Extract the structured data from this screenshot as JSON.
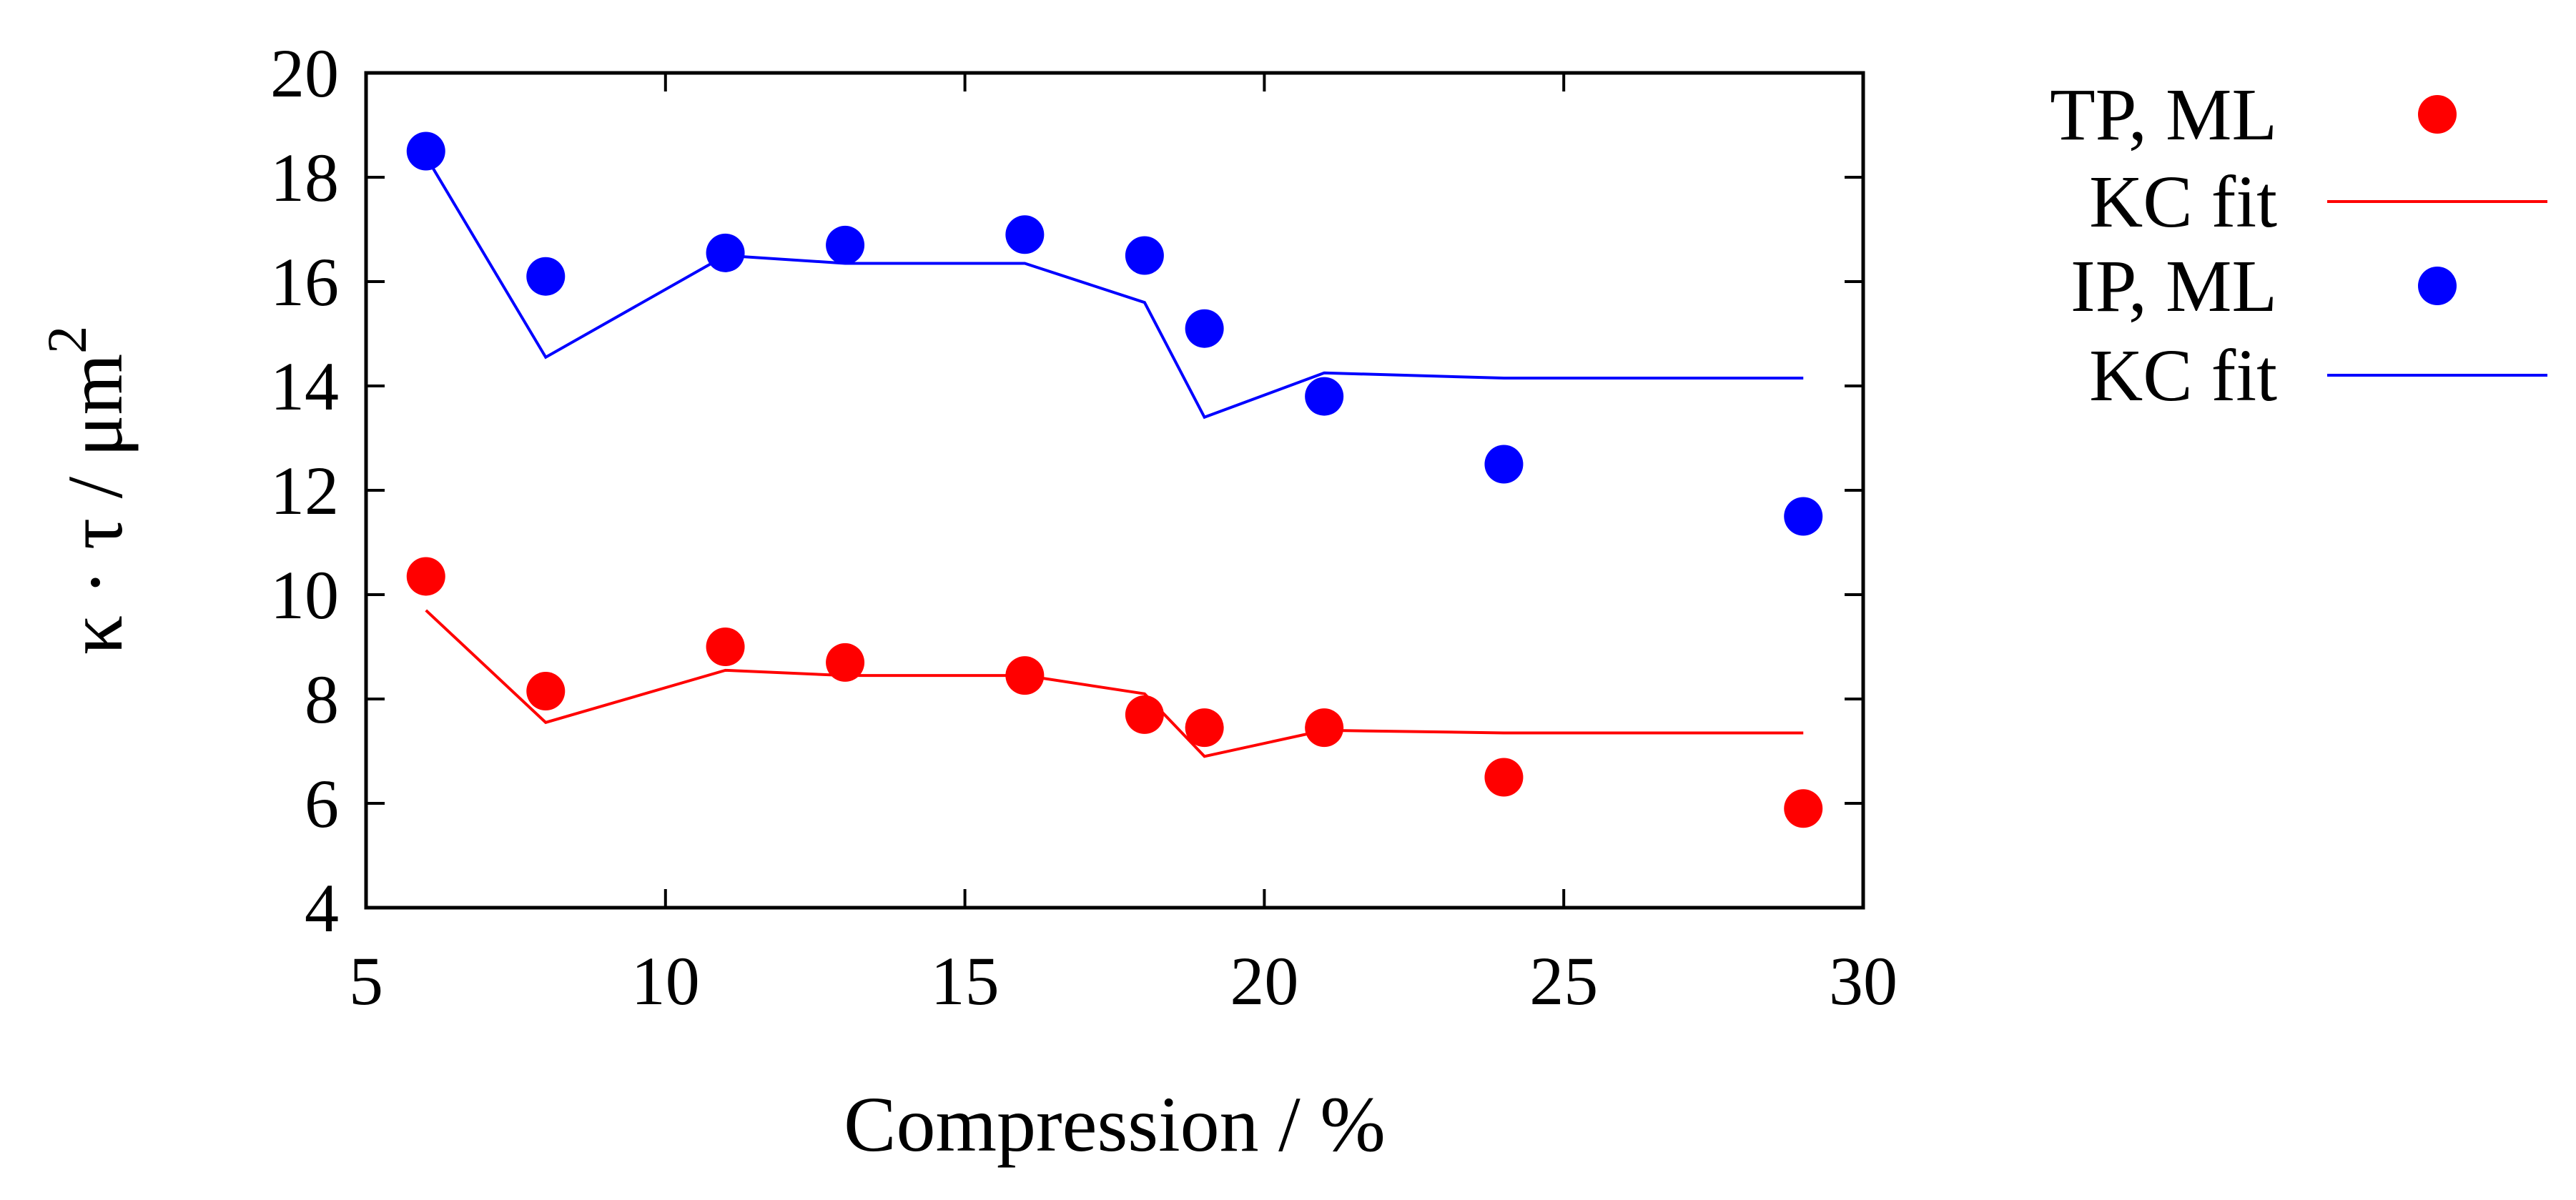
{
  "chart_data": {
    "type": "scatter",
    "title": "",
    "xlabel": "Compression  / %",
    "ylabel": {
      "main": "κ · τ / μm",
      "superscript": "2"
    },
    "xlim": [
      5,
      30
    ],
    "ylim": [
      4,
      20
    ],
    "xticks": [
      5,
      10,
      15,
      20,
      25,
      30
    ],
    "yticks": [
      4,
      6,
      8,
      10,
      12,
      14,
      16,
      18,
      20
    ],
    "grid": false,
    "legend_position": "outside-right",
    "x": [
      6,
      8,
      11,
      13,
      16,
      18,
      19,
      21,
      24,
      29
    ],
    "series": [
      {
        "name": "TP, ML",
        "kind": "points",
        "color": "#ff0000",
        "values": [
          10.35,
          8.15,
          9.0,
          8.7,
          8.45,
          7.7,
          7.45,
          7.45,
          6.5,
          5.9
        ]
      },
      {
        "name": "KC fit",
        "kind": "line",
        "color": "#ff0000",
        "values": [
          9.7,
          7.55,
          8.55,
          8.45,
          8.45,
          8.1,
          6.9,
          7.4,
          7.35,
          7.35
        ]
      },
      {
        "name": "IP, ML",
        "kind": "points",
        "color": "#0000ff",
        "values": [
          18.5,
          16.1,
          16.55,
          16.7,
          16.9,
          16.5,
          15.1,
          13.8,
          12.5,
          11.5
        ]
      },
      {
        "name": "KC fit",
        "kind": "line",
        "color": "#0000ff",
        "values": [
          18.4,
          14.55,
          16.5,
          16.35,
          16.35,
          15.6,
          13.4,
          14.25,
          14.15,
          14.15
        ]
      }
    ]
  }
}
